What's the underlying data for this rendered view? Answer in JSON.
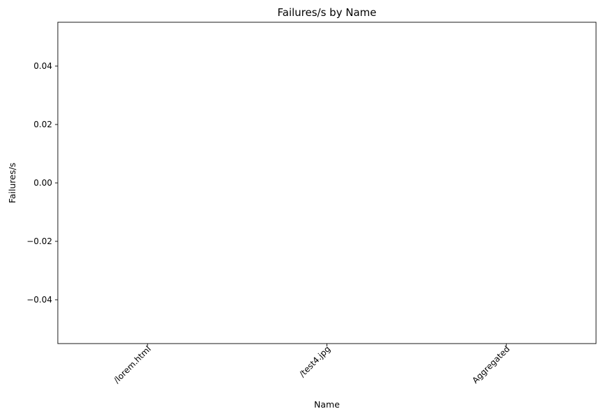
{
  "chart_data": {
    "type": "bar",
    "title": "Failures/s by Name",
    "xlabel": "Name",
    "ylabel": "Failures/s",
    "categories": [
      "/lorem.html",
      "/test4.jpg",
      "Aggregated"
    ],
    "values": [
      0,
      0,
      0
    ],
    "ylim": [
      -0.055,
      0.055
    ],
    "yticks": [
      0.04,
      0.02,
      0.0,
      -0.02,
      -0.04
    ],
    "ytick_labels": [
      "0.04",
      "0.02",
      "0.00",
      "−0.02",
      "−0.04"
    ],
    "xtick_rotation": 45,
    "grid": false,
    "legend": "none"
  }
}
